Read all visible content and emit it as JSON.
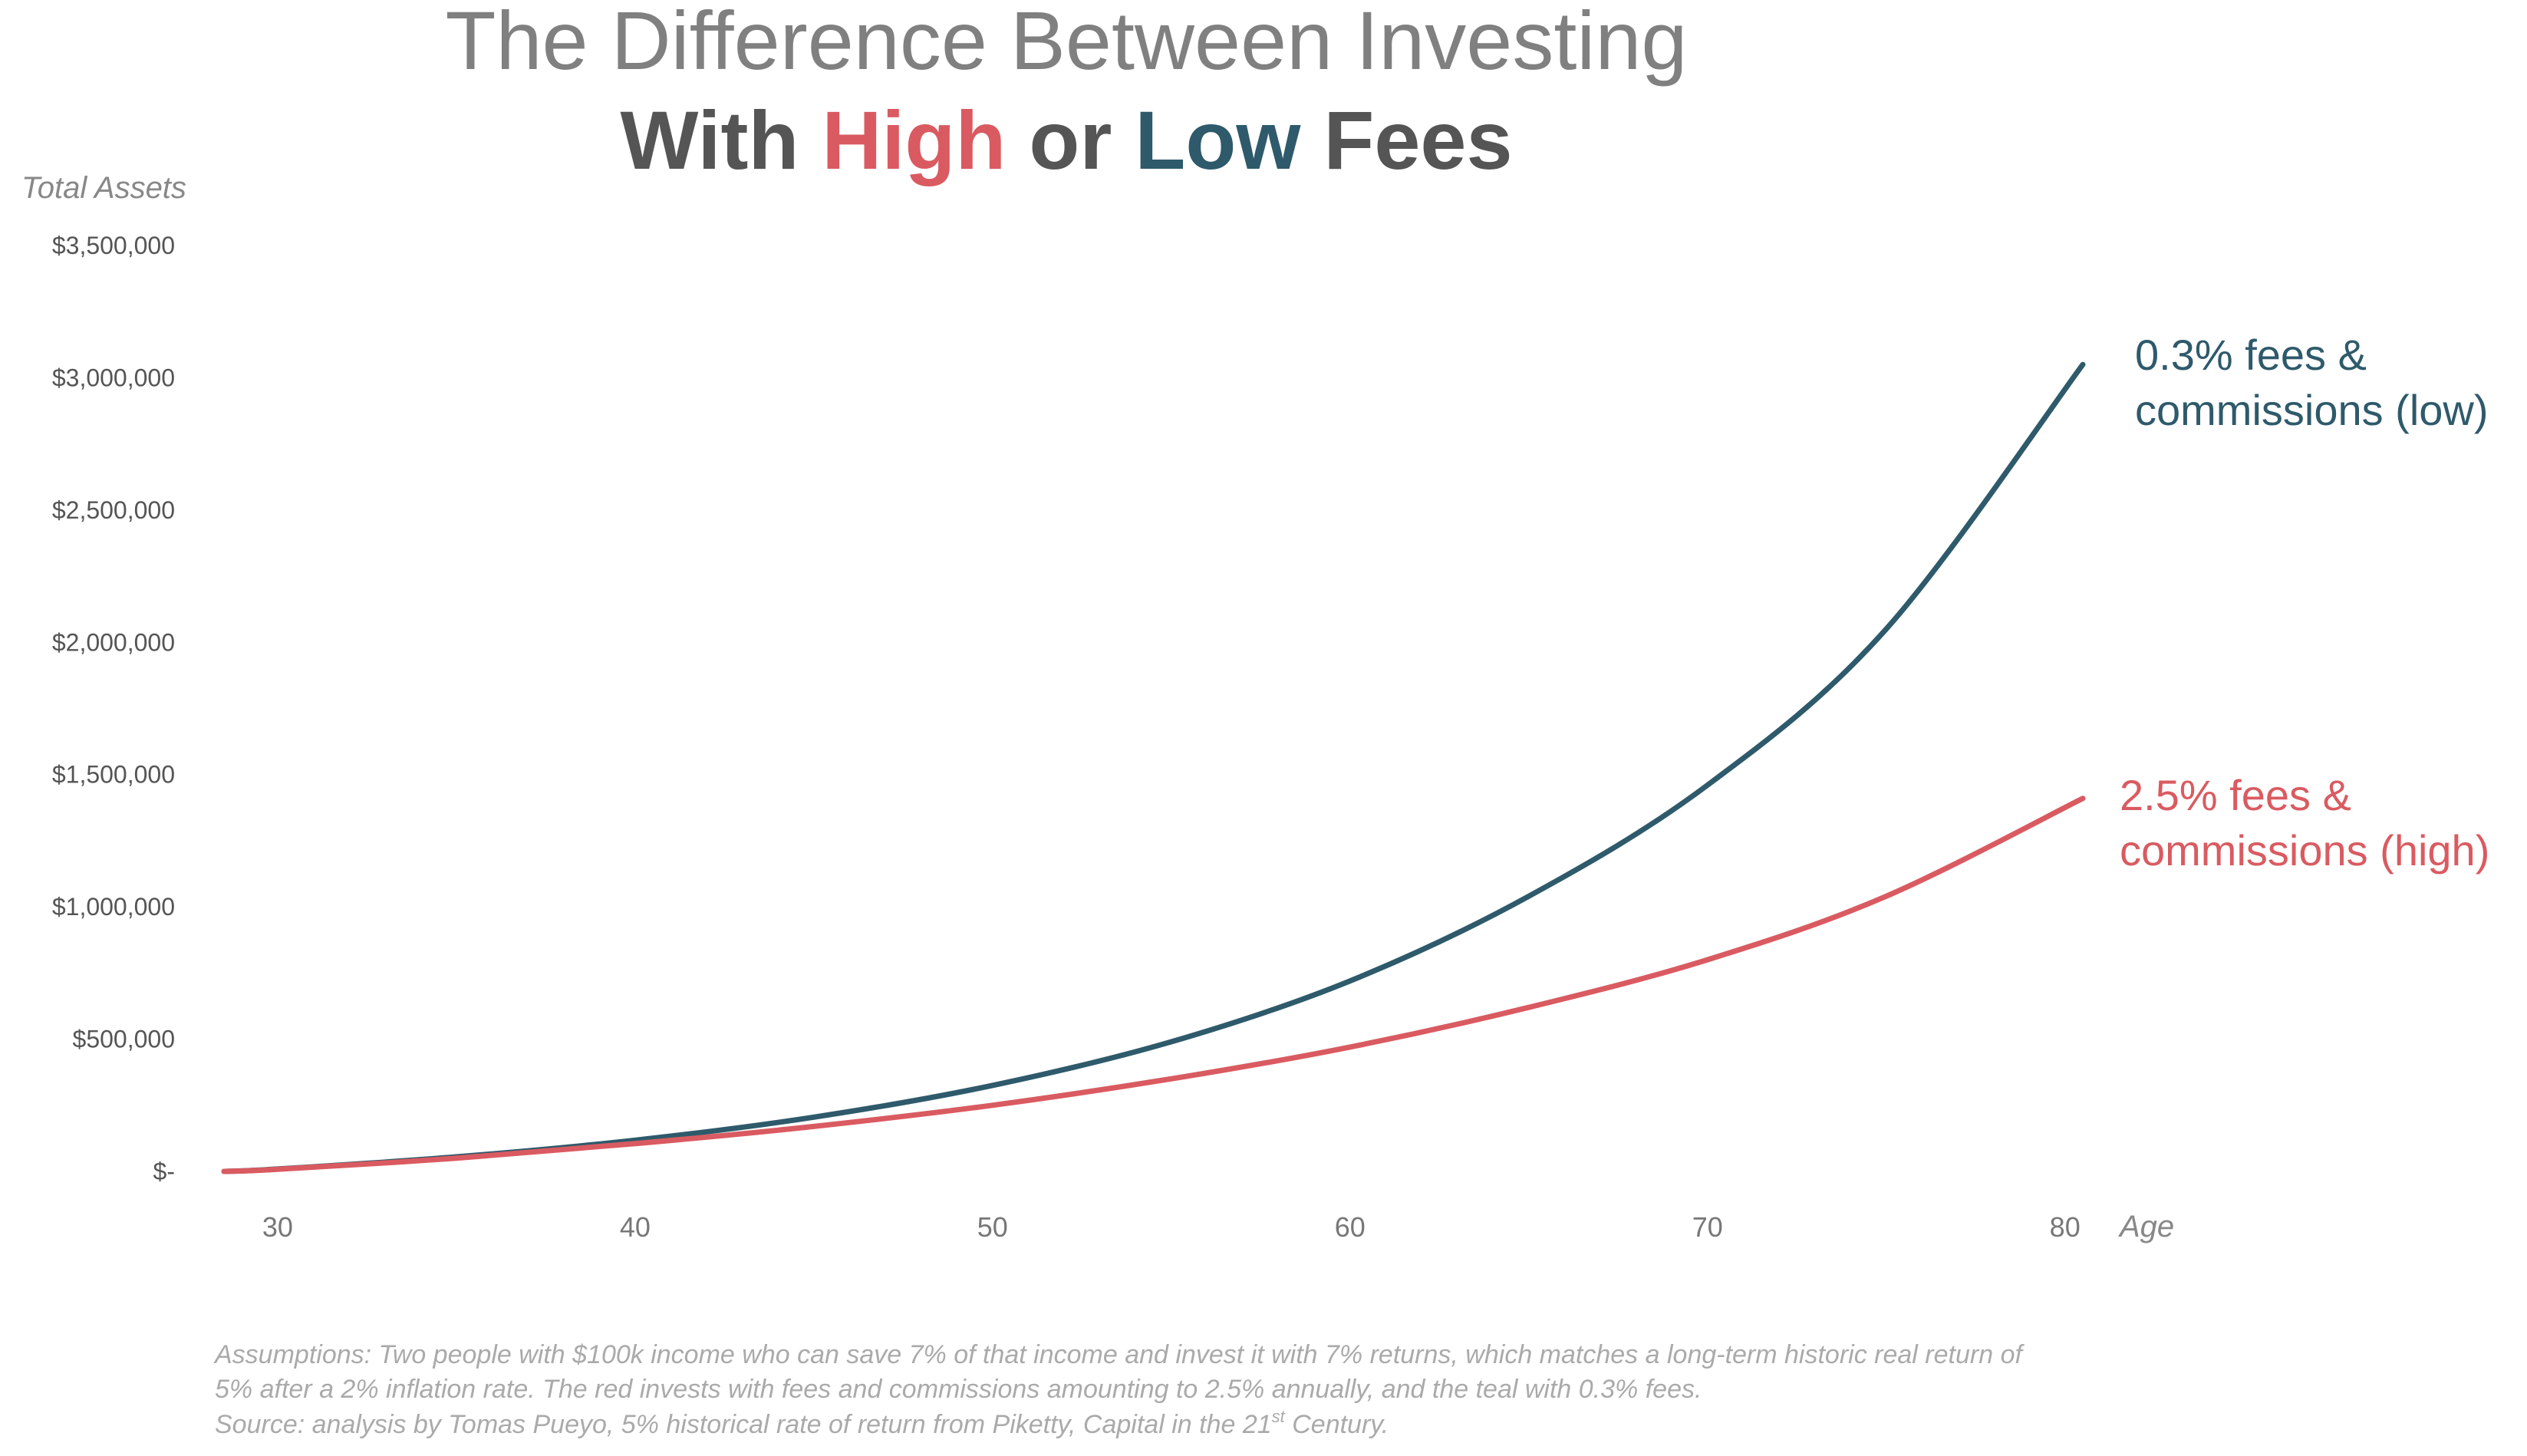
{
  "title": {
    "line1": "The Difference Between Investing",
    "line2": {
      "part1": "With ",
      "high": "High",
      "mid": " or ",
      "low": "Low",
      "end": " Fees"
    }
  },
  "colors": {
    "high": "#d95b61",
    "low": "#2e5a6b",
    "title_gray": "#808080",
    "title_dark": "#555555",
    "note": "#aaaaaa"
  },
  "chart_data": {
    "type": "line",
    "ylabel": "Total Assets",
    "xlabel": "Age",
    "xlim": [
      28.5,
      80.5
    ],
    "ylim": [
      0,
      3500000
    ],
    "x_ticks": [
      {
        "value": 30,
        "label": "30"
      },
      {
        "value": 40,
        "label": "40"
      },
      {
        "value": 50,
        "label": "50"
      },
      {
        "value": 60,
        "label": "60"
      },
      {
        "value": 70,
        "label": "70"
      },
      {
        "value": 80,
        "label": "80"
      }
    ],
    "y_ticks": [
      {
        "value": 0,
        "label": "$-"
      },
      {
        "value": 500000,
        "label": "$500,000"
      },
      {
        "value": 1000000,
        "label": "$1,000,000"
      },
      {
        "value": 1500000,
        "label": "$1,500,000"
      },
      {
        "value": 2000000,
        "label": "$2,000,000"
      },
      {
        "value": 2500000,
        "label": "$2,500,000"
      },
      {
        "value": 3000000,
        "label": "$3,000,000"
      },
      {
        "value": 3500000,
        "label": "$3,500,000"
      }
    ],
    "grid": false,
    "series": [
      {
        "key": "low",
        "label_lines": [
          "0.3% fees &",
          "commissions (low)"
        ],
        "color": "#2e5a6b",
        "x": [
          28.5,
          30,
          35,
          40,
          45,
          50,
          55,
          60,
          65,
          70,
          75,
          80.5
        ],
        "values": [
          0,
          9000,
          55000,
          118000,
          205000,
          325000,
          490000,
          720000,
          1040000,
          1460000,
          2050000,
          3050000
        ]
      },
      {
        "key": "high",
        "label_lines": [
          "2.5% fees &",
          "commissions (high)"
        ],
        "color": "#d95b61",
        "x": [
          28.5,
          30,
          35,
          40,
          45,
          50,
          55,
          60,
          65,
          70,
          75,
          80.5
        ],
        "values": [
          0,
          8000,
          50000,
          105000,
          170000,
          250000,
          350000,
          470000,
          620000,
          800000,
          1040000,
          1410000
        ]
      }
    ]
  },
  "notes": {
    "line1": "Assumptions: Two people with $100k income who can save 7% of that income and invest it with 7% returns, which matches a long-term historic real return of",
    "line2": "5% after a 2% inflation rate. The red invests with fees and commissions amounting to 2.5% annually, and the teal with 0.3% fees.",
    "line3_pre": "Source: analysis by Tomas Pueyo, 5% historical rate of return from Piketty, Capital in the 21",
    "line3_sup": "st",
    "line3_post": " Century."
  }
}
